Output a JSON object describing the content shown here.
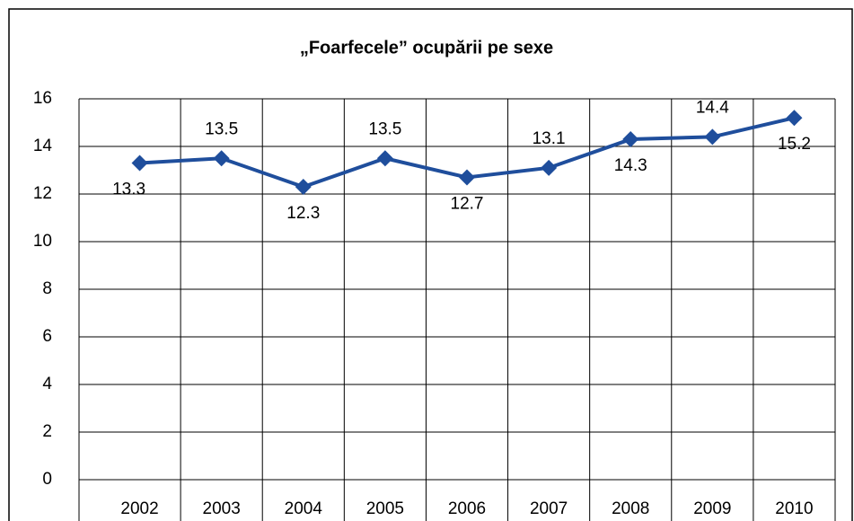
{
  "chart_data": {
    "type": "line",
    "title": "„Foarfecele” ocupării pe sexe",
    "categories": [
      "2002",
      "2003",
      "2004",
      "2005",
      "2006",
      "2007",
      "2008",
      "2009",
      "2010"
    ],
    "series": [
      {
        "color": "#1f4e9c",
        "values": [
          13.3,
          13.5,
          12.3,
          13.5,
          12.7,
          13.1,
          14.3,
          14.4,
          15.2
        ]
      }
    ],
    "ylim": [
      0,
      16
    ],
    "yticks": [
      0,
      2,
      4,
      6,
      8,
      10,
      12,
      14,
      16
    ],
    "grid": true
  }
}
